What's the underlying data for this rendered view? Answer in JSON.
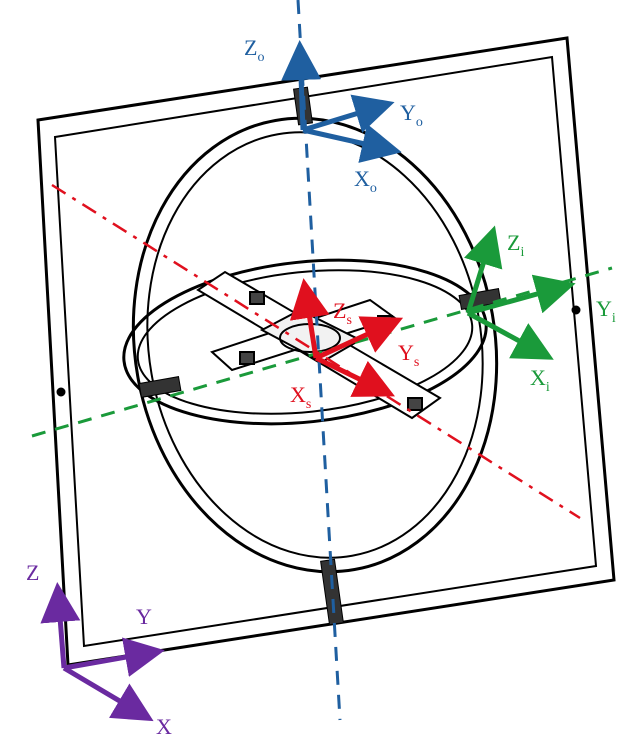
{
  "colors": {
    "outer_frame": "#000000",
    "outer_axis": "#1f5fa0",
    "inner_axis": "#1a9a3a",
    "spin_axis": "#e0101e",
    "world_axis": "#6a2aa0"
  },
  "frames": {
    "outer": {
      "z_label": "Z",
      "z_sub": "o",
      "y_label": "Y",
      "y_sub": "o",
      "x_label": "X",
      "x_sub": "o"
    },
    "inner": {
      "z_label": "Z",
      "z_sub": "i",
      "y_label": "Y",
      "y_sub": "i",
      "x_label": "X",
      "x_sub": "i"
    },
    "spin": {
      "z_label": "Z",
      "z_sub": "s",
      "y_label": "Y",
      "y_sub": "s",
      "x_label": "X",
      "x_sub": "s"
    },
    "world": {
      "z_label": "Z",
      "y_label": "Y",
      "x_label": "X"
    }
  }
}
